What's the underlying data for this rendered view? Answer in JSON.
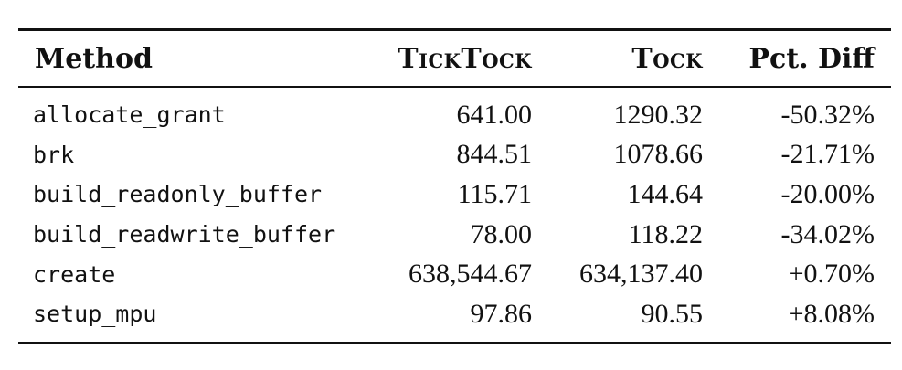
{
  "table": {
    "headers": {
      "method": "Method",
      "ticktock": "TickTock",
      "tock": "Tock",
      "pct_diff": "Pct. Diff"
    },
    "rows": [
      {
        "method": "allocate_grant",
        "ticktock": "641.00",
        "tock": "1290.32",
        "pct_diff": "-50.32%"
      },
      {
        "method": "brk",
        "ticktock": "844.51",
        "tock": "1078.66",
        "pct_diff": "-21.71%"
      },
      {
        "method": "build_readonly_buffer",
        "ticktock": "115.71",
        "tock": "144.64",
        "pct_diff": "-20.00%"
      },
      {
        "method": "build_readwrite_buffer",
        "ticktock": "78.00",
        "tock": "118.22",
        "pct_diff": "-34.02%"
      },
      {
        "method": "create",
        "ticktock": "638,544.67",
        "tock": "634,137.40",
        "pct_diff": "+0.70%"
      },
      {
        "method": "setup_mpu",
        "ticktock": "97.86",
        "tock": "90.55",
        "pct_diff": "+8.08%"
      }
    ]
  }
}
